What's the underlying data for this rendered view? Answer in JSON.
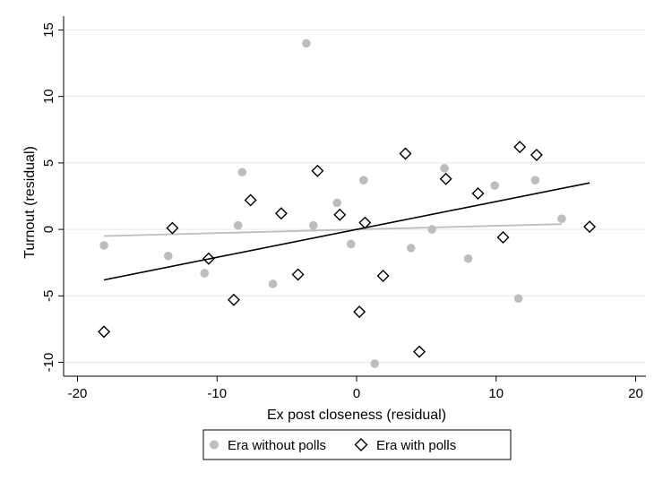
{
  "chart_data": {
    "type": "scatter",
    "xlabel": "Ex post closeness (residual)",
    "ylabel": "Turnout (residual)",
    "xlim": [
      -20,
      20
    ],
    "ylim": [
      -10,
      15
    ],
    "xticks": [
      -20,
      -10,
      0,
      10,
      20
    ],
    "yticks": [
      -10,
      -5,
      0,
      5,
      10,
      15
    ],
    "grid": "horizontal",
    "legend_position": "bottom",
    "series": [
      {
        "name": "Era without polls",
        "marker": "circle",
        "color": "#bdbdbd",
        "points": [
          [
            -18.1,
            -1.2
          ],
          [
            -13.5,
            -2.0
          ],
          [
            -10.9,
            -3.3
          ],
          [
            -8.5,
            0.3
          ],
          [
            -8.2,
            4.3
          ],
          [
            -6.0,
            -4.1
          ],
          [
            -3.6,
            14.0
          ],
          [
            -3.1,
            0.3
          ],
          [
            -1.4,
            2.0
          ],
          [
            -0.4,
            -1.1
          ],
          [
            0.5,
            3.7
          ],
          [
            1.3,
            -10.1
          ],
          [
            3.9,
            -1.4
          ],
          [
            5.4,
            0.0
          ],
          [
            6.3,
            4.6
          ],
          [
            8.0,
            -2.2
          ],
          [
            9.9,
            3.3
          ],
          [
            11.6,
            -5.2
          ],
          [
            12.8,
            3.7
          ],
          [
            14.7,
            0.8
          ]
        ]
      },
      {
        "name": "Era with polls",
        "marker": "diamond",
        "color": "#000000",
        "points": [
          [
            -18.1,
            -7.7
          ],
          [
            -13.2,
            0.1
          ],
          [
            -10.6,
            -2.2
          ],
          [
            -8.8,
            -5.3
          ],
          [
            -7.6,
            2.2
          ],
          [
            -5.4,
            1.2
          ],
          [
            -4.2,
            -3.4
          ],
          [
            -2.8,
            4.4
          ],
          [
            -1.2,
            1.1
          ],
          [
            0.2,
            -6.2
          ],
          [
            0.6,
            0.5
          ],
          [
            1.9,
            -3.5
          ],
          [
            3.5,
            5.7
          ],
          [
            4.5,
            -9.2
          ],
          [
            6.4,
            3.8
          ],
          [
            8.7,
            2.7
          ],
          [
            10.5,
            -0.6
          ],
          [
            11.7,
            6.2
          ],
          [
            12.9,
            5.6
          ],
          [
            16.7,
            0.2
          ]
        ]
      }
    ],
    "fit_lines": [
      {
        "series": "Era without polls",
        "color": "#bdbdbd",
        "from": [
          -18.1,
          -0.5
        ],
        "to": [
          14.7,
          0.4
        ]
      },
      {
        "series": "Era with polls",
        "color": "#000000",
        "from": [
          -18.1,
          -3.8
        ],
        "to": [
          16.7,
          3.5
        ]
      }
    ]
  }
}
